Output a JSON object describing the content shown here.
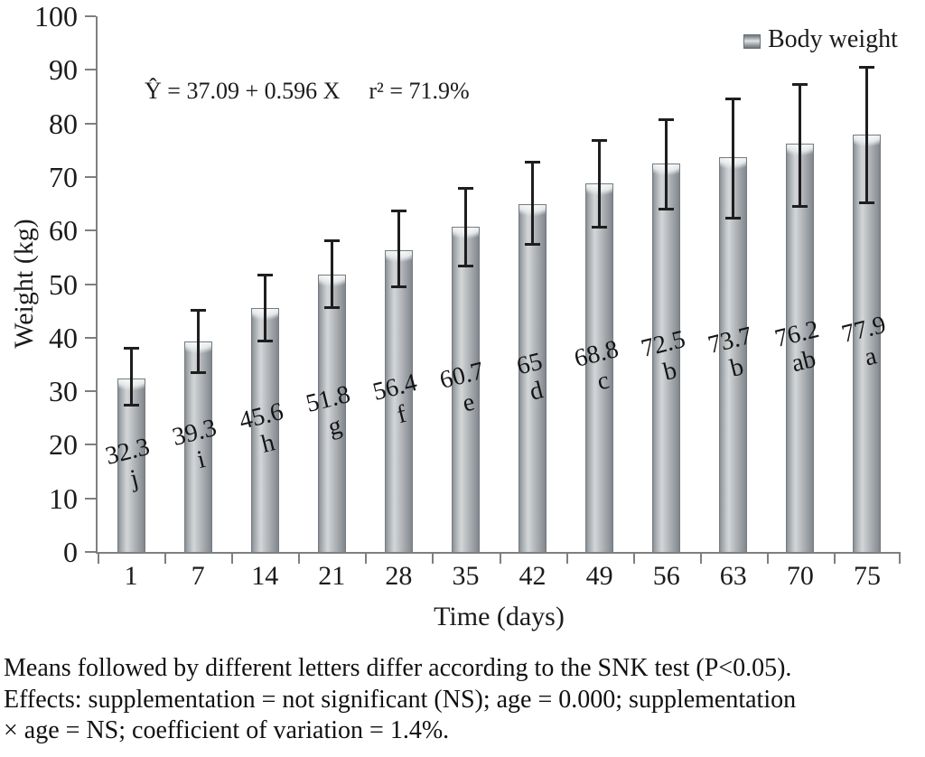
{
  "equation": {
    "lhs": "Ŷ = 37.09 + 0.596 X",
    "r2": "r² = 71.9%"
  },
  "legend": {
    "label": "Body weight"
  },
  "chart_data": {
    "type": "bar",
    "title": "",
    "categories": [
      "1",
      "7",
      "14",
      "21",
      "28",
      "35",
      "42",
      "49",
      "56",
      "63",
      "70",
      "75"
    ],
    "series": [
      {
        "name": "Body weight",
        "values": [
          32.3,
          39.3,
          45.6,
          51.8,
          56.4,
          60.7,
          65,
          68.8,
          72.5,
          73.7,
          76.2,
          77.9
        ],
        "snk_letters": [
          "j",
          "i",
          "h",
          "g",
          "f",
          "e",
          "d",
          "c",
          "b",
          "b",
          "ab",
          "a"
        ],
        "error_top": [
          38.3,
          45.3,
          52.0,
          58.3,
          63.9,
          68.1,
          73.0,
          77.0,
          80.9,
          84.8,
          87.5,
          90.7
        ],
        "error_bottom": [
          27.1,
          33.3,
          39.2,
          45.3,
          49.3,
          53.2,
          57.1,
          60.3,
          63.7,
          62.0,
          64.2,
          65.0
        ]
      }
    ],
    "xlabel": "Time (days)",
    "ylabel": "Weight (kg)",
    "ylim": [
      0,
      100
    ],
    "ytick_step": 10,
    "grid": false,
    "legend_position": "top-right",
    "regression": "Ŷ = 37.09 + 0.596 X, r² = 71.9%",
    "bar_color": "#b7bcc0",
    "bar_highlight": "#e9ecee",
    "bar_edge": "#767c81",
    "error_color": "#1e1e1e",
    "axis_color": "#7f7f7f"
  },
  "footer": {
    "lines": [
      "Means followed by different letters differ according to the SNK test (P<0.05).",
      "Effects: supplementation = not significant (NS); age = 0.000; supplementation",
      "× age = NS; coefficient of variation = 1.4%."
    ]
  }
}
